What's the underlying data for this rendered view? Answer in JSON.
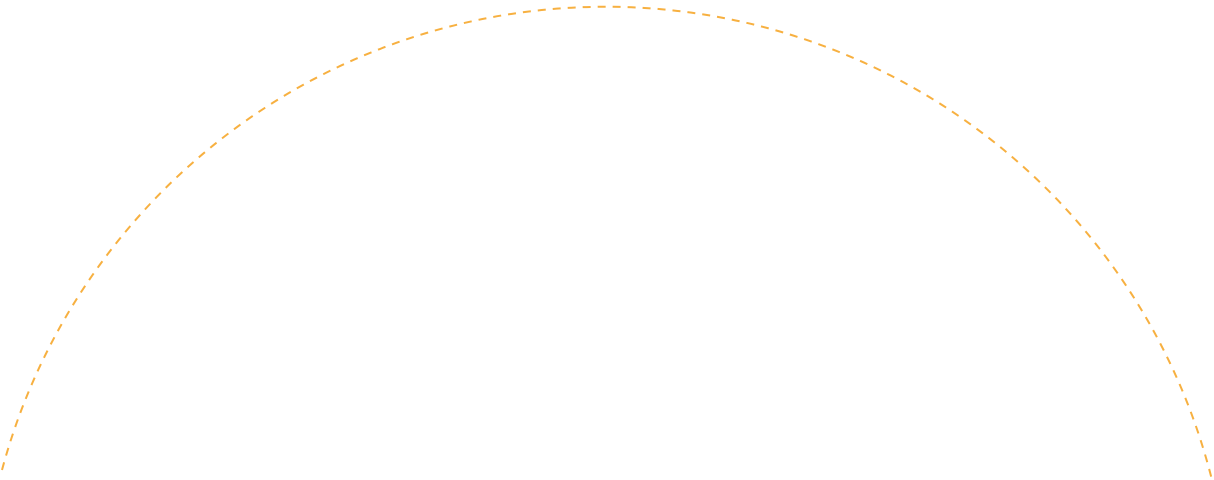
{
  "arc": {
    "stroke_color": "#F7B040",
    "style": "dashed"
  }
}
